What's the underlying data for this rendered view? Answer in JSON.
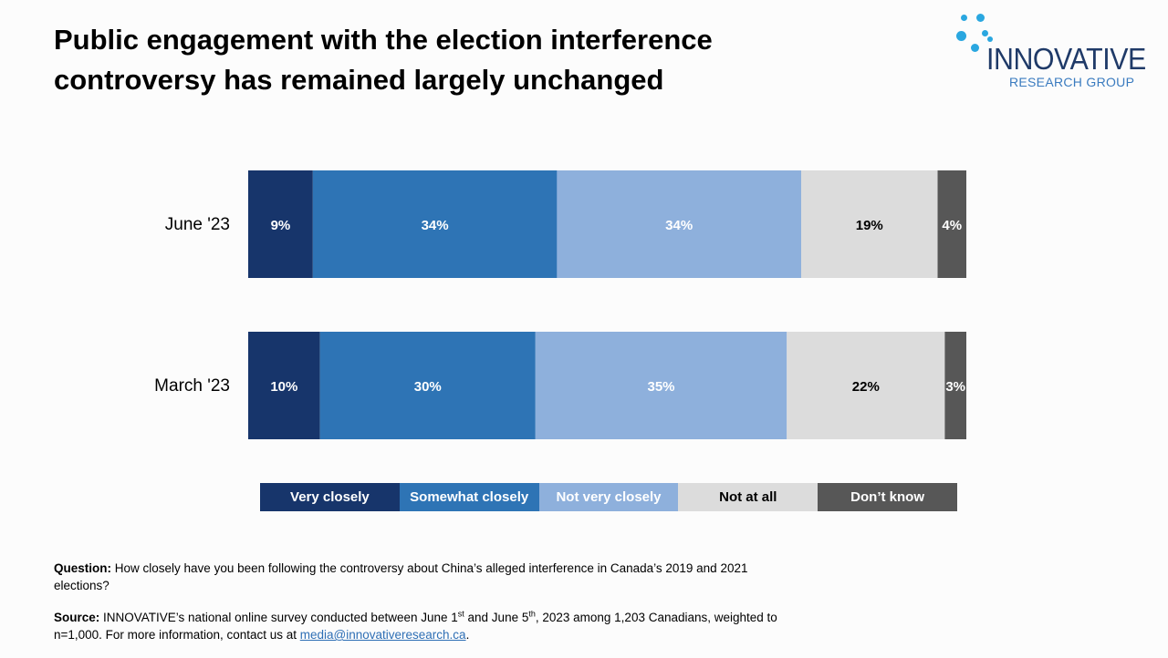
{
  "title": "Public engagement with the election interference controversy has remained largely unchanged",
  "logo": {
    "name": "INNOVATIVE",
    "subtitle": "RESEARCH GROUP",
    "color": "#1f3a68",
    "accent": "#2aa7e0"
  },
  "chart_data": {
    "type": "bar",
    "orientation": "horizontal",
    "stacked": true,
    "normalized": true,
    "categories": [
      "June '23",
      "March '23"
    ],
    "series": [
      {
        "name": "Very closely",
        "values": [
          9,
          10
        ],
        "color": "#17356b",
        "label_color": "#ffffff"
      },
      {
        "name": "Somewhat closely",
        "values": [
          34,
          30
        ],
        "color": "#2e74b5",
        "label_color": "#ffffff"
      },
      {
        "name": "Not very closely",
        "values": [
          34,
          35
        ],
        "color": "#8eb0dc",
        "label_color": "#ffffff"
      },
      {
        "name": "Not at all",
        "values": [
          19,
          22
        ],
        "color": "#dcdcdc",
        "label_color": "#000000"
      },
      {
        "name": "Don’t know",
        "values": [
          4,
          3
        ],
        "color": "#575757",
        "label_color": "#ffffff"
      }
    ],
    "value_suffix": "%",
    "legend_position": "bottom",
    "grid": false
  },
  "notes": {
    "question_label": "Question:",
    "question_text": "How closely have you been following the controversy about China’s alleged interference in Canada’s 2019 and 2021 elections?",
    "source_label": "Source:",
    "source_text_1": "INNOVATIVE’s national online survey conducted between June 1",
    "source_sup_1": "st",
    "source_text_2": " and June 5",
    "source_sup_2": "th",
    "source_text_3": ", 2023 among 1,203 Canadians, weighted to n=1,000. For more information, contact us at ",
    "source_email": "media@innovativeresearch.ca",
    "source_end": "."
  }
}
